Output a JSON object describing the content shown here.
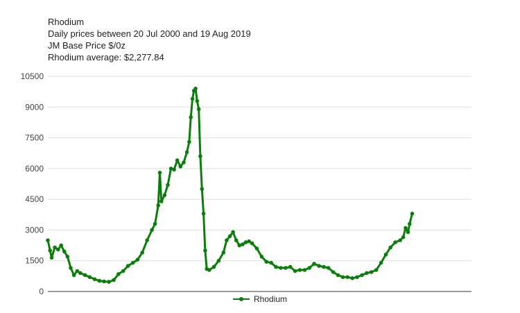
{
  "header": {
    "title": "Rhodium",
    "line1": "Daily prices between 20 Jul 2000 and 19 Aug 2019",
    "line2": "JM Base Price $/0z",
    "line3": "Rhodium average: $2,277.84"
  },
  "chart_data": {
    "type": "line",
    "title": "Rhodium",
    "subtitle": "Daily prices between 20 Jul 2000 and 19 Aug 2019",
    "xlabel": "",
    "ylabel": "",
    "x_type": "date",
    "xlim": [
      "2000-07-20",
      "2019-08-19"
    ],
    "ylim": [
      0,
      10500
    ],
    "yticks": [
      0,
      1500,
      3000,
      4500,
      6000,
      7500,
      9000,
      10500
    ],
    "ytick_labels": [
      "0",
      "1500",
      "3000",
      "4500",
      "6000",
      "7500",
      "9000",
      "10500"
    ],
    "grid": true,
    "legend": "bottom",
    "colors": {
      "series": "#0b7d0b",
      "grid": "#dddddd",
      "axis": "#333333"
    },
    "series": [
      {
        "name": "Rhodium",
        "points": [
          [
            "2000-07-20",
            2500
          ],
          [
            "2000-09-01",
            2000
          ],
          [
            "2000-10-01",
            1650
          ],
          [
            "2000-12-01",
            2150
          ],
          [
            "2001-02-01",
            2050
          ],
          [
            "2001-04-01",
            2250
          ],
          [
            "2001-06-01",
            1950
          ],
          [
            "2001-08-01",
            1700
          ],
          [
            "2001-10-01",
            1150
          ],
          [
            "2001-12-01",
            800
          ],
          [
            "2002-02-01",
            1000
          ],
          [
            "2002-04-01",
            900
          ],
          [
            "2002-07-01",
            800
          ],
          [
            "2002-10-01",
            700
          ],
          [
            "2003-01-01",
            600
          ],
          [
            "2003-04-01",
            520
          ],
          [
            "2003-07-01",
            490
          ],
          [
            "2003-10-01",
            470
          ],
          [
            "2004-01-01",
            560
          ],
          [
            "2004-04-01",
            850
          ],
          [
            "2004-07-01",
            1000
          ],
          [
            "2004-10-01",
            1250
          ],
          [
            "2005-01-01",
            1400
          ],
          [
            "2005-04-01",
            1550
          ],
          [
            "2005-07-01",
            1900
          ],
          [
            "2005-10-01",
            2500
          ],
          [
            "2006-01-01",
            3000
          ],
          [
            "2006-03-01",
            3300
          ],
          [
            "2006-05-01",
            4200
          ],
          [
            "2006-06-01",
            5800
          ],
          [
            "2006-07-01",
            4400
          ],
          [
            "2006-09-01",
            4700
          ],
          [
            "2006-11-01",
            5200
          ],
          [
            "2007-01-01",
            6000
          ],
          [
            "2007-03-01",
            5950
          ],
          [
            "2007-05-01",
            6400
          ],
          [
            "2007-07-01",
            6100
          ],
          [
            "2007-09-01",
            6300
          ],
          [
            "2007-11-01",
            6800
          ],
          [
            "2007-12-15",
            7300
          ],
          [
            "2008-01-15",
            8500
          ],
          [
            "2008-02-15",
            9400
          ],
          [
            "2008-03-15",
            9800
          ],
          [
            "2008-04-15",
            9900
          ],
          [
            "2008-05-15",
            9300
          ],
          [
            "2008-06-15",
            8900
          ],
          [
            "2008-07-15",
            6600
          ],
          [
            "2008-08-15",
            5000
          ],
          [
            "2008-09-15",
            3800
          ],
          [
            "2008-10-15",
            2000
          ],
          [
            "2008-11-15",
            1100
          ],
          [
            "2009-01-01",
            1050
          ],
          [
            "2009-04-01",
            1200
          ],
          [
            "2009-07-01",
            1500
          ],
          [
            "2009-10-01",
            1900
          ],
          [
            "2009-12-01",
            2500
          ],
          [
            "2010-02-01",
            2700
          ],
          [
            "2010-04-01",
            2900
          ],
          [
            "2010-06-01",
            2500
          ],
          [
            "2010-08-01",
            2250
          ],
          [
            "2010-10-01",
            2300
          ],
          [
            "2010-12-01",
            2400
          ],
          [
            "2011-02-01",
            2450
          ],
          [
            "2011-04-01",
            2350
          ],
          [
            "2011-07-01",
            2100
          ],
          [
            "2011-10-01",
            1700
          ],
          [
            "2012-01-01",
            1450
          ],
          [
            "2012-04-01",
            1400
          ],
          [
            "2012-07-01",
            1200
          ],
          [
            "2012-10-01",
            1150
          ],
          [
            "2013-01-01",
            1150
          ],
          [
            "2013-04-01",
            1200
          ],
          [
            "2013-07-01",
            1000
          ],
          [
            "2013-10-01",
            1050
          ],
          [
            "2014-01-01",
            1050
          ],
          [
            "2014-04-01",
            1150
          ],
          [
            "2014-07-01",
            1350
          ],
          [
            "2014-10-01",
            1250
          ],
          [
            "2015-01-01",
            1200
          ],
          [
            "2015-04-01",
            1150
          ],
          [
            "2015-07-01",
            950
          ],
          [
            "2015-10-01",
            800
          ],
          [
            "2016-01-01",
            700
          ],
          [
            "2016-04-01",
            700
          ],
          [
            "2016-07-01",
            650
          ],
          [
            "2016-10-01",
            700
          ],
          [
            "2017-01-01",
            800
          ],
          [
            "2017-04-01",
            900
          ],
          [
            "2017-07-01",
            950
          ],
          [
            "2017-10-01",
            1050
          ],
          [
            "2018-01-01",
            1400
          ],
          [
            "2018-04-01",
            1800
          ],
          [
            "2018-07-01",
            2150
          ],
          [
            "2018-10-01",
            2400
          ],
          [
            "2019-01-01",
            2500
          ],
          [
            "2019-03-01",
            2650
          ],
          [
            "2019-04-15",
            3100
          ],
          [
            "2019-06-01",
            2900
          ],
          [
            "2019-07-01",
            3300
          ],
          [
            "2019-08-19",
            3800
          ]
        ]
      }
    ]
  }
}
